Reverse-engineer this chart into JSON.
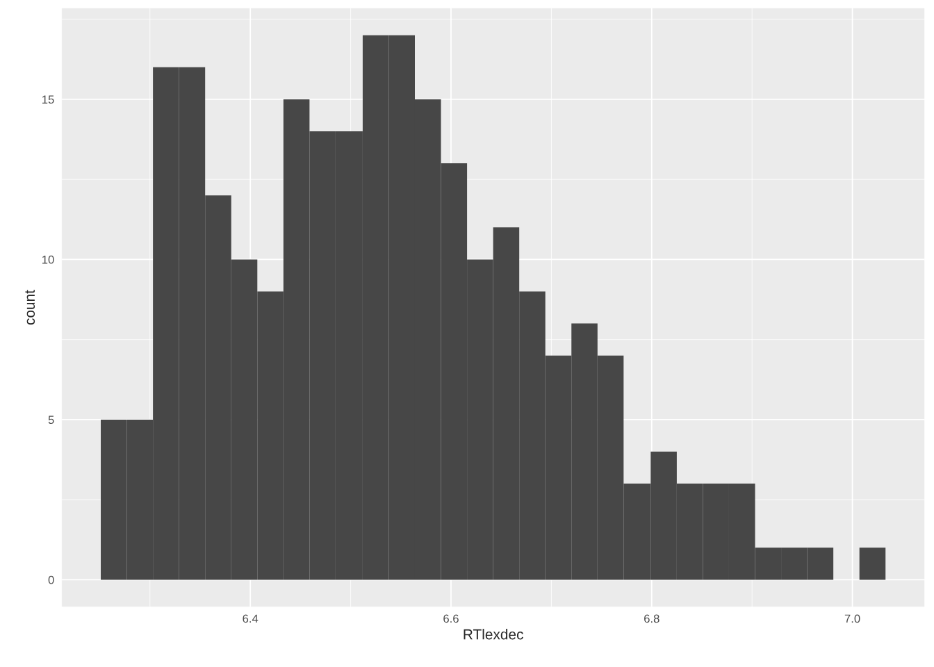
{
  "chart_data": {
    "type": "histogram",
    "xlabel": "RTlexdec",
    "ylabel": "count",
    "bins": [
      6.251,
      6.277,
      6.303,
      6.329,
      6.355,
      6.381,
      6.407,
      6.433,
      6.459,
      6.485,
      6.512,
      6.538,
      6.564,
      6.59,
      6.616,
      6.642,
      6.668,
      6.694,
      6.72,
      6.746,
      6.772,
      6.799,
      6.825,
      6.851,
      6.877,
      6.903,
      6.929,
      6.955,
      6.981,
      7.007,
      7.033
    ],
    "values": [
      5,
      5,
      16,
      16,
      12,
      10,
      9,
      15,
      14,
      14,
      17,
      17,
      15,
      13,
      10,
      11,
      9,
      7,
      8,
      7,
      3,
      4,
      3,
      3,
      3,
      1,
      1,
      1,
      0,
      1
    ],
    "color": "#474747",
    "xlim": [
      6.212,
      7.072
    ],
    "ylim": [
      -0.85,
      17.85
    ],
    "xticks": [
      6.4,
      6.6,
      6.8,
      {
        "value": 7.0,
        "label": "7.0"
      }
    ],
    "yticks": [
      0,
      5,
      10,
      15
    ],
    "grid": true
  }
}
